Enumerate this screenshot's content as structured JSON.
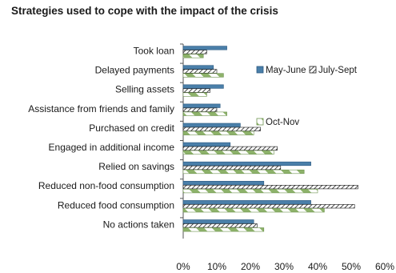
{
  "chart_data": {
    "type": "bar",
    "orientation": "horizontal",
    "title": "Strategies used to cope with the impact of the crisis",
    "categories": [
      "Took loan",
      "Delayed payments",
      "Selling assets",
      "Assistance from friends and family",
      "Purchased on credit",
      "Engaged in additional income",
      "Relied on savings",
      "Reduced non-food consumption",
      "Reduced food consumption",
      "No actions taken"
    ],
    "series": [
      {
        "name": "May-June",
        "values": [
          13,
          9,
          12,
          11,
          17,
          14,
          38,
          24,
          38,
          21
        ]
      },
      {
        "name": "July-Sept",
        "values": [
          7,
          10,
          8,
          10,
          23,
          28,
          29,
          52,
          51,
          22
        ]
      },
      {
        "name": "Oct-Nov",
        "values": [
          6,
          12,
          7,
          13,
          21,
          27,
          36,
          40,
          42,
          24
        ]
      }
    ],
    "xlim": [
      0,
      60
    ],
    "xticks": [
      "0%",
      "10%",
      "20%",
      "30%",
      "40%",
      "50%",
      "60%"
    ],
    "legend_position": "right",
    "colors": {
      "May-June": "#4a7fa9",
      "July-Sept": "#1a1a1a",
      "Oct-Nov": "#8db26a"
    }
  }
}
